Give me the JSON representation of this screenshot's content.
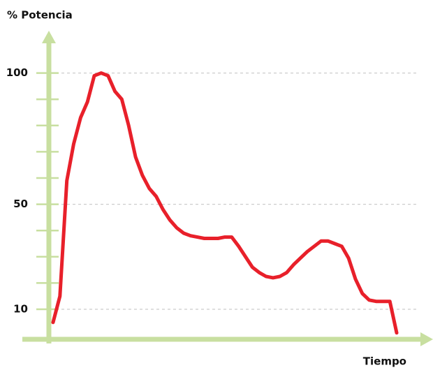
{
  "chart_data": {
    "type": "line",
    "ylabel": "% Potencia",
    "xlabel": "Tiempo",
    "categories": [
      null,
      null,
      null,
      null,
      null,
      null,
      null,
      null,
      null,
      null,
      null,
      null,
      null,
      null,
      null,
      null,
      null,
      null,
      null,
      null,
      null,
      null,
      null,
      null,
      null,
      null,
      null,
      null,
      null,
      null,
      null,
      null,
      null,
      null,
      null,
      null,
      null,
      null,
      null,
      null,
      null,
      null,
      null,
      null,
      null,
      null,
      null,
      null,
      null,
      null,
      null
    ],
    "series": [
      {
        "color": "#e8202a",
        "values": [
          5,
          15,
          59,
          73,
          83,
          89,
          99,
          100,
          99,
          93,
          90,
          80,
          68,
          61,
          56,
          53,
          48,
          44,
          41,
          39,
          38,
          37.5,
          37,
          37,
          37,
          37.5,
          37.5,
          34,
          30,
          26,
          24,
          22.5,
          22,
          22.5,
          24,
          27,
          29.5,
          32,
          34,
          36,
          36,
          35,
          34,
          29.5,
          21.5,
          16,
          13.5,
          13,
          13,
          13,
          1
        ]
      }
    ],
    "ylim": [
      0,
      115
    ],
    "yticks": [
      10,
      50,
      100
    ],
    "yminor_ticks": [
      20,
      30,
      40,
      60,
      70,
      80,
      90
    ],
    "grid": true,
    "axis_color": "#c8dfa0"
  }
}
